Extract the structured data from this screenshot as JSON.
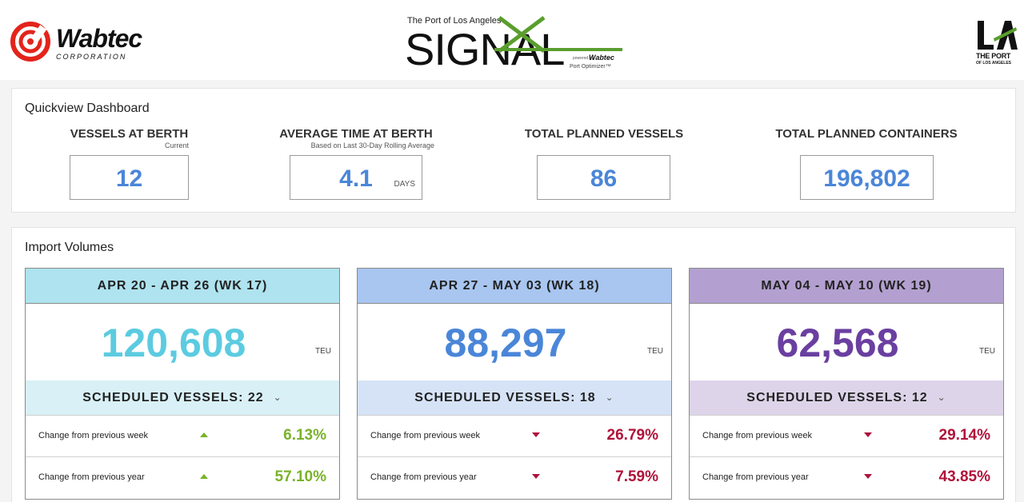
{
  "brand": {
    "wabtec_name": "Wabtec",
    "wabtec_sub": "CORPORATION",
    "signal_top": "The Port of Los Angeles",
    "signal_word": "SIGNAL",
    "signal_powered": "powered by",
    "signal_wabtec": "Wabtec",
    "signal_product": "Port Optimizer™",
    "la_port": "THE PORT",
    "la_sub": "OF LOS ANGELES"
  },
  "quickview": {
    "title": "Quickview Dashboard",
    "kpis": [
      {
        "label": "VESSELS AT BERTH",
        "sub": "Current",
        "value": "12",
        "unit": ""
      },
      {
        "label": "AVERAGE TIME AT BERTH",
        "sub": "Based on Last 30-Day Rolling Average",
        "value": "4.1",
        "unit": "DAYS"
      },
      {
        "label": "TOTAL PLANNED VESSELS",
        "sub": "",
        "value": "86",
        "unit": ""
      },
      {
        "label": "TOTAL PLANNED CONTAINERS",
        "sub": "",
        "value": "196,802",
        "unit": ""
      }
    ]
  },
  "imports": {
    "title": "Import Volumes",
    "unit": "TEU",
    "prev_week_label": "Change from previous week",
    "prev_year_label": "Change from previous year",
    "weeks": [
      {
        "header": "APR 20 - APR 26 (WK 17)",
        "teu": "120,608",
        "sched": "SCHEDULED VESSELS: 22",
        "week_change": "6.13%",
        "week_dir": "up",
        "year_change": "57.10%",
        "year_dir": "up",
        "head_color": "#aee3ef",
        "sched_color": "#d8f0f6",
        "num_color": "#5ccbe0"
      },
      {
        "header": "APR 27 - MAY 03 (WK 18)",
        "teu": "88,297",
        "sched": "SCHEDULED VESSELS: 18",
        "week_change": "26.79%",
        "week_dir": "down",
        "year_change": "7.59%",
        "year_dir": "down",
        "head_color": "#a8c6f0",
        "sched_color": "#d6e3f7",
        "num_color": "#4a86d8"
      },
      {
        "header": "MAY 04 - MAY 10 (WK 19)",
        "teu": "62,568",
        "sched": "SCHEDULED VESSELS: 12",
        "week_change": "29.14%",
        "week_dir": "down",
        "year_change": "43.85%",
        "year_dir": "down",
        "head_color": "#b3a0d0",
        "sched_color": "#ddd4e9",
        "num_color": "#6a3fa0"
      }
    ]
  },
  "colors": {
    "up": "#7ab22a",
    "down": "#b0123a",
    "accent": "#4a86d8",
    "signal_green": "#5a9e2e",
    "wabtec_red": "#e3241b"
  },
  "icons": {
    "expand": "chevron-down-icon",
    "increase": "triangle-up-icon",
    "decrease": "triangle-down-icon"
  }
}
